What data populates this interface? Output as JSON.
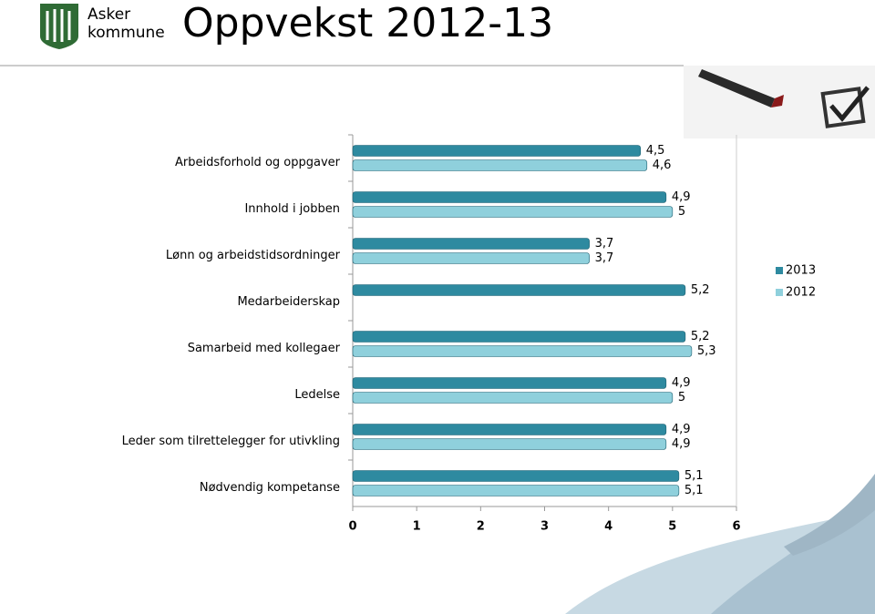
{
  "header": {
    "logo_lines": [
      "Asker",
      "kommune"
    ],
    "title": "Oppvekst 2012-13"
  },
  "chart_data": {
    "type": "hbar",
    "categories": [
      "Arbeidsforhold og oppgaver",
      "Innhold i jobben",
      "Lønn og arbeidstidsordninger",
      "Medarbeiderskap",
      "Samarbeid med kollegaer",
      "Ledelse",
      "Leder som tilrettelegger for utivkling",
      "Nødvendig kompetanse"
    ],
    "series": [
      {
        "name": "2013",
        "color": "#2e8aa0",
        "values": [
          4.5,
          4.9,
          3.7,
          5.2,
          5.2,
          4.9,
          4.9,
          5.1
        ],
        "value_labels": [
          "4,5",
          "4,9",
          "3,7",
          "5,2",
          "5,2",
          "4,9",
          "4,9",
          "5,1"
        ]
      },
      {
        "name": "2012",
        "color": "#8fd0dc",
        "values": [
          4.6,
          5,
          3.7,
          null,
          5.3,
          5,
          4.9,
          5.1
        ],
        "value_labels": [
          "4,6",
          "5",
          "3,7",
          null,
          "5,3",
          "5",
          "4,9",
          "5,1"
        ]
      }
    ],
    "xlim": [
      0,
      6
    ],
    "xticks": [
      0,
      1,
      2,
      3,
      4,
      5,
      6
    ],
    "legend": "right"
  }
}
